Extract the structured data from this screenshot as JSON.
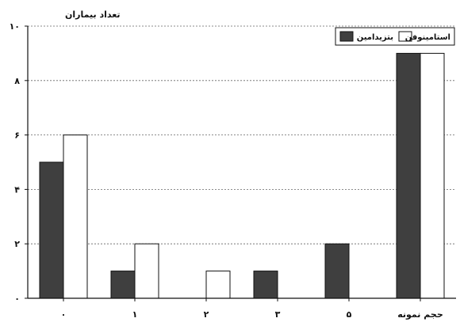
{
  "chart_data": {
    "type": "bar",
    "ylabel": "تعداد بیماران",
    "xlabel": "",
    "ylim": [
      0,
      10
    ],
    "yticks": [
      0,
      2,
      4,
      6,
      8,
      10
    ],
    "ytick_labels": [
      "۰",
      "۲",
      "۴",
      "۶",
      "۸",
      "۱۰"
    ],
    "categories": [
      "۰",
      "۱",
      "۲",
      "۳",
      "۵",
      "حجم نمونه"
    ],
    "series": [
      {
        "name": "بتزیدامین",
        "values": [
          5,
          1,
          0,
          1,
          2,
          9
        ],
        "color": "#3f3f3f"
      },
      {
        "name": "استامینوفن",
        "values": [
          6,
          2,
          1,
          0,
          0,
          9
        ],
        "color": "#ffffff"
      }
    ],
    "grid": true,
    "legend_position": "top-right"
  }
}
